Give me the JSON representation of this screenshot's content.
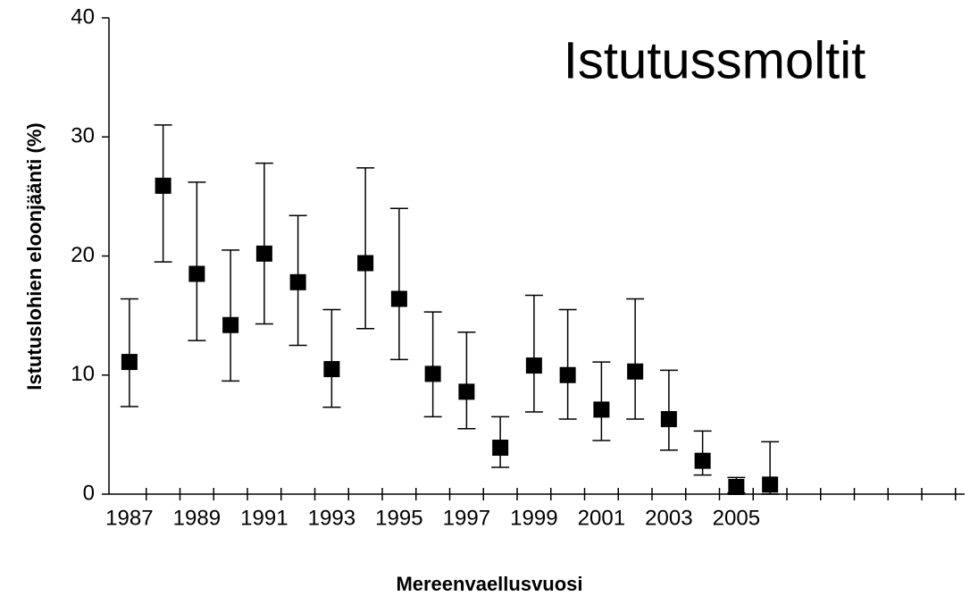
{
  "chart_data": {
    "type": "errorbar",
    "title": "Istutussmoltit",
    "y_label": "Istutuslohien eloonjäänti (%)",
    "x_label": "Mereenvaellusvuosi",
    "categories": [
      "1987",
      null,
      "1989",
      null,
      "1991",
      null,
      "1993",
      null,
      "1995",
      null,
      "1997",
      null,
      "1999",
      null,
      "2001",
      null,
      "2003",
      null,
      "2005",
      null
    ],
    "series": [
      {
        "color": "#000000",
        "values": [
          11.1,
          25.9,
          18.5,
          14.2,
          20.2,
          17.8,
          10.5,
          19.4,
          16.4,
          10.1,
          8.6,
          3.9,
          10.8,
          10.0,
          7.1,
          10.3,
          6.3,
          2.8,
          0.6,
          0.8
        ],
        "upper": [
          16.4,
          31.0,
          26.2,
          20.5,
          27.8,
          23.4,
          15.5,
          27.4,
          24.0,
          15.3,
          13.6,
          6.5,
          16.7,
          15.5,
          11.1,
          16.4,
          10.4,
          5.3,
          1.4,
          4.4
        ],
        "lower": [
          7.35,
          19.5,
          12.9,
          9.5,
          14.3,
          12.5,
          7.3,
          13.9,
          11.3,
          6.5,
          5.5,
          2.25,
          6.9,
          6.3,
          4.5,
          6.3,
          3.7,
          1.6,
          0.1,
          0
        ]
      }
    ],
    "ylim": [
      0,
      40
    ],
    "yticks": [
      0,
      10,
      20,
      30,
      40
    ]
  }
}
